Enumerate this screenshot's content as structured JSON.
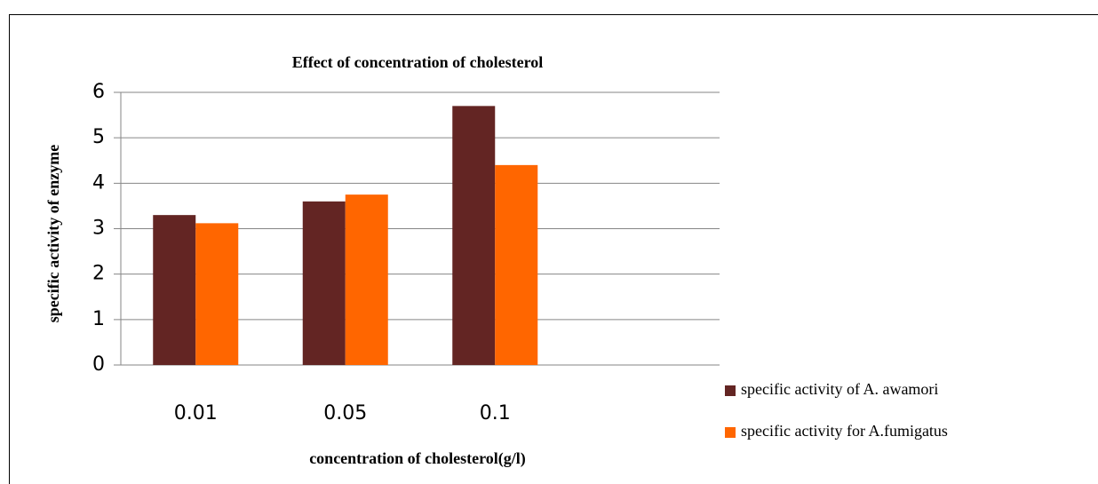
{
  "chart_data": {
    "type": "bar",
    "title": "Effect of concentration of cholesterol",
    "xlabel": "concentration of cholesterol(g/l)",
    "ylabel": "specific activity of enzyme",
    "categories": [
      "0.01",
      "0.05",
      "0.1",
      null
    ],
    "series": [
      {
        "name": "specific activity of A. awamori",
        "color": "#632523",
        "values": [
          3.3,
          3.6,
          5.7,
          null
        ]
      },
      {
        "name": "specific activity for A.fumigatus",
        "color": "#ff6600",
        "values": [
          3.12,
          3.75,
          4.4,
          null
        ]
      }
    ],
    "ylim": [
      0,
      6
    ],
    "yticks": [
      0,
      1,
      2,
      3,
      4,
      5,
      6
    ],
    "grid": true,
    "legend": "bottom-right"
  }
}
